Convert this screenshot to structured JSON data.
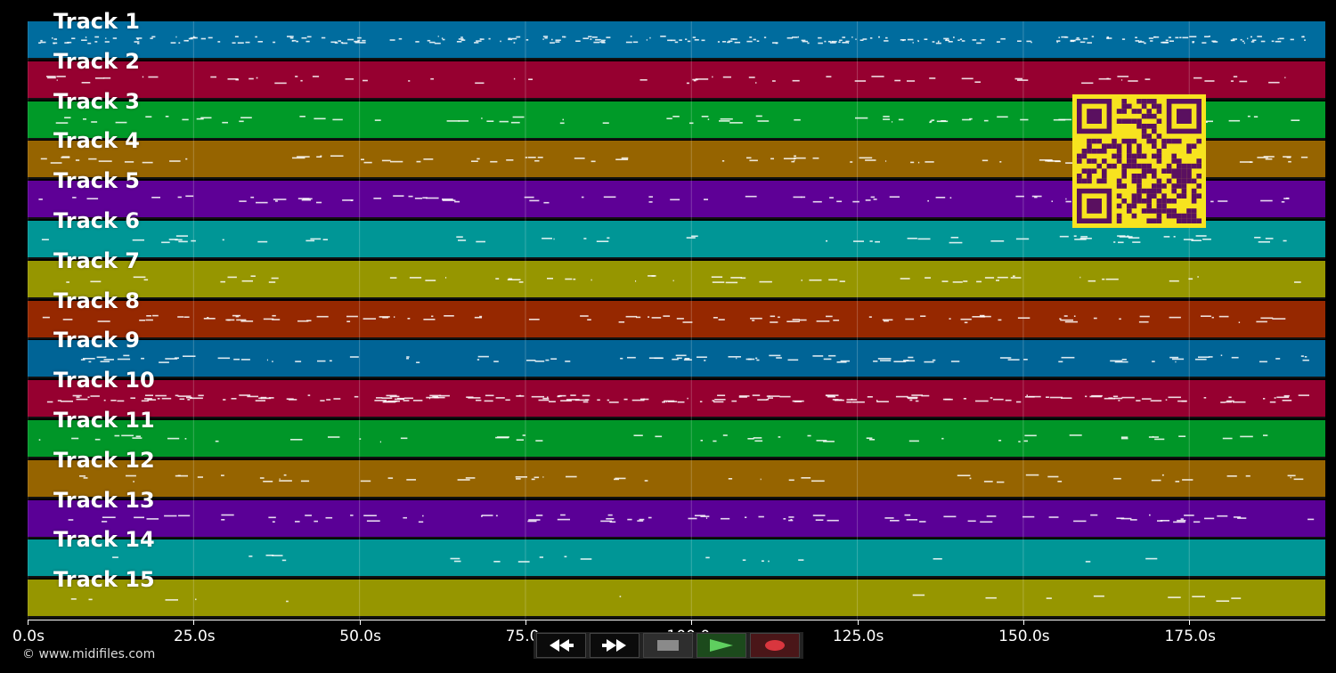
{
  "tracks": [
    {
      "label": "Track 1",
      "color": "#006c9e"
    },
    {
      "label": "Track 2",
      "color": "#960030"
    },
    {
      "label": "Track 3",
      "color": "#009a28"
    },
    {
      "label": "Track 4",
      "color": "#966400"
    },
    {
      "label": "Track 5",
      "color": "#5e0096"
    },
    {
      "label": "Track 6",
      "color": "#009696"
    },
    {
      "label": "Track 7",
      "color": "#969600"
    },
    {
      "label": "Track 8",
      "color": "#962800"
    },
    {
      "label": "Track 9",
      "color": "#006496"
    },
    {
      "label": "Track 10",
      "color": "#960030"
    },
    {
      "label": "Track 11",
      "color": "#009628"
    },
    {
      "label": "Track 12",
      "color": "#966400"
    },
    {
      "label": "Track 13",
      "color": "#5a0096"
    },
    {
      "label": "Track 14",
      "color": "#009696"
    },
    {
      "label": "Track 15",
      "color": "#969600"
    }
  ],
  "time_axis": {
    "min_seconds": 0,
    "max_seconds": 195.5,
    "ticks": [
      {
        "value": 0,
        "label": "0.0s"
      },
      {
        "value": 25,
        "label": "25.0s"
      },
      {
        "value": 50,
        "label": "50.0s"
      },
      {
        "value": 75,
        "label": "75.0s"
      },
      {
        "value": 100,
        "label": "100.0s"
      },
      {
        "value": 125,
        "label": "125.0s"
      },
      {
        "value": 150,
        "label": "150.0s"
      },
      {
        "value": 175,
        "label": "175.0s"
      }
    ]
  },
  "copyright": "© www.midifiles.com",
  "transport": {
    "buttons": [
      {
        "name": "rewind-button",
        "icon": "rewind-icon",
        "color": "#ffffff"
      },
      {
        "name": "fast-forward-button",
        "icon": "fast-forward-icon",
        "color": "#ffffff"
      },
      {
        "name": "stop-button",
        "icon": "stop-icon",
        "color": "#8a8a8a"
      },
      {
        "name": "play-button",
        "icon": "play-icon",
        "color": "#5fcf5f"
      },
      {
        "name": "record-button",
        "icon": "record-icon",
        "color": "#d9363e"
      }
    ]
  },
  "qr_code": {
    "icon": "qr-code-icon",
    "color": "#f7e31f",
    "module_color": "#5a1060"
  }
}
